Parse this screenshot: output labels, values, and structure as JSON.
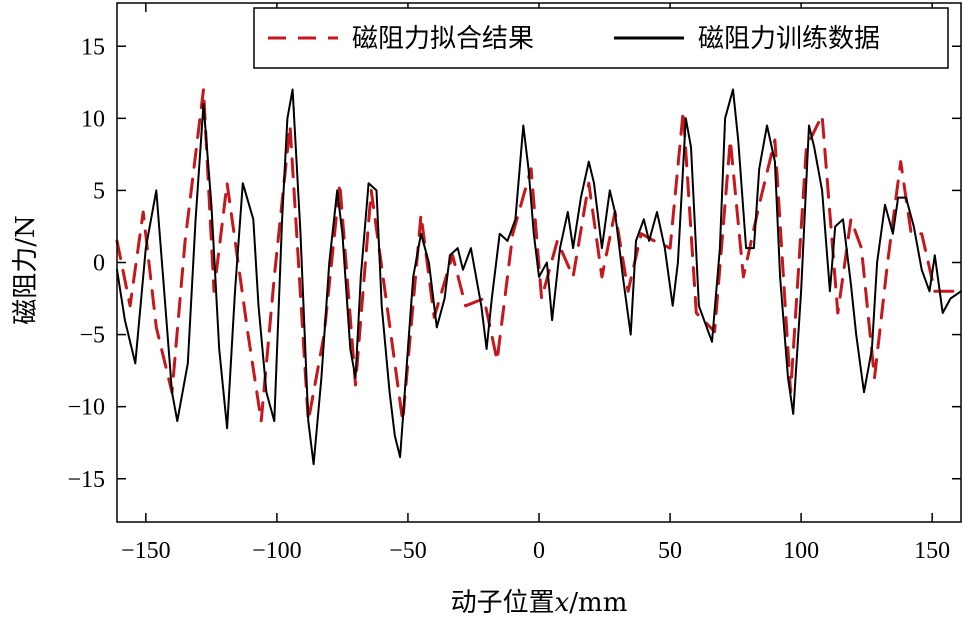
{
  "chart_data": {
    "type": "line",
    "title": "",
    "xlabel": "动子位置x/mm",
    "xlabel_parts": [
      "动子位置",
      "x",
      "/mm"
    ],
    "ylabel": "磁阻力/N",
    "xlim": [
      -161,
      161
    ],
    "ylim": [
      -18,
      18
    ],
    "xticks": [
      -150,
      -100,
      -50,
      0,
      50,
      100,
      150
    ],
    "xtick_labels": [
      "−150",
      "−100",
      "−50",
      "0",
      "50",
      "100",
      "150"
    ],
    "yticks": [
      -15,
      -10,
      -5,
      0,
      5,
      10,
      15
    ],
    "ytick_labels": [
      "−15",
      "−10",
      "−5",
      "0",
      "5",
      "10",
      "15"
    ],
    "grid": false,
    "legend_position": "top-right",
    "series": [
      {
        "name": "磁阻力拟合结果",
        "color": "#c8161d",
        "style": "dashed",
        "x": [
          -161,
          -156,
          -151,
          -146,
          -140,
          -135,
          -128,
          -124,
          -119,
          -111,
          -106,
          -101,
          -95,
          -88,
          -82,
          -76,
          -70,
          -64,
          -58,
          -52,
          -45,
          -40,
          -33,
          -28,
          -21,
          -16,
          -10,
          -3,
          1,
          7,
          13,
          19,
          24,
          29,
          34,
          39,
          44,
          50,
          55,
          60,
          67,
          73,
          78,
          84,
          90,
          96,
          102,
          108,
          114,
          119,
          123,
          128,
          133,
          138,
          142,
          146,
          151,
          156,
          161
        ],
        "y": [
          1.5,
          -3,
          3.5,
          -4.5,
          -9,
          1.5,
          12,
          -2,
          5.5,
          -5,
          -11,
          -1,
          9.5,
          -11,
          -5,
          5.5,
          -8.5,
          5,
          -3,
          -11,
          3.3,
          -3.8,
          0.5,
          -3,
          -2.5,
          -6.8,
          2,
          6.5,
          -2.5,
          1.5,
          -1,
          5.5,
          -1,
          3.5,
          -2,
          2,
          1.5,
          1,
          10.5,
          -3.5,
          -4.8,
          8.5,
          -1,
          4,
          8.5,
          -9,
          8,
          10.2,
          -3.5,
          3,
          1,
          -8,
          0,
          7,
          2,
          2,
          -2,
          -2,
          -2
        ]
      },
      {
        "name": "磁阻力训练数据",
        "color": "#000000",
        "style": "solid",
        "x": [
          -161,
          -158,
          -154,
          -150,
          -146,
          -143,
          -140,
          -138,
          -134,
          -131,
          -128,
          -125,
          -122,
          -119,
          -116,
          -113,
          -109,
          -107,
          -104,
          -101,
          -98,
          -96,
          -94,
          -91,
          -88,
          -86,
          -83,
          -80,
          -77,
          -75,
          -72,
          -70,
          -68,
          -65,
          -62,
          -60,
          -57,
          -55,
          -53,
          -50,
          -48,
          -45,
          -42,
          -39,
          -36,
          -34,
          -31,
          -29,
          -26,
          -24,
          -22,
          -20,
          -18,
          -15,
          -12,
          -9,
          -6,
          -4,
          -2,
          0,
          3,
          5,
          8,
          11,
          13,
          16,
          19,
          21,
          24,
          27,
          29,
          32,
          35,
          37,
          40,
          42,
          45,
          48,
          51,
          53,
          56,
          58,
          61,
          63,
          66,
          69,
          71,
          74,
          76,
          79,
          82,
          84,
          87,
          90,
          92,
          95,
          97,
          100,
          103,
          105,
          108,
          111,
          113,
          116,
          119,
          121,
          124,
          127,
          129,
          132,
          135,
          137,
          140,
          143,
          146,
          149,
          151,
          154,
          157,
          161
        ],
        "y": [
          -0.5,
          -4,
          -7,
          1,
          5,
          -2,
          -9,
          -11,
          -7,
          3,
          11,
          4,
          -6,
          -11.5,
          -2,
          5.5,
          3,
          -3,
          -9,
          -11,
          3,
          10,
          12,
          2,
          -11,
          -14,
          -8,
          0,
          5,
          2,
          -6,
          -8,
          -1,
          5.5,
          5,
          -3,
          -9,
          -12,
          -13.5,
          -6,
          -1,
          2,
          0,
          -4.5,
          -2.5,
          0.5,
          1,
          -0.5,
          1,
          -1,
          -3,
          -6,
          -2.5,
          2,
          1.5,
          3,
          9.5,
          6.5,
          2,
          -1,
          0,
          -4,
          1,
          3.5,
          1,
          4.5,
          7,
          5.5,
          1,
          5,
          3.5,
          -1,
          -5,
          1.5,
          3,
          1.5,
          3.5,
          1,
          -3,
          0,
          10,
          8,
          -3,
          -4,
          -5.5,
          1,
          10,
          12,
          8.5,
          1,
          1,
          6.5,
          9.5,
          7,
          -1,
          -8,
          -10.5,
          -2,
          9.5,
          8,
          5,
          -2,
          2.5,
          3,
          -1.5,
          -5,
          -9,
          -6,
          0,
          4,
          2,
          4.5,
          4.5,
          2.5,
          -0.5,
          -2,
          0.5,
          -3.5,
          -2.5,
          -2
        ]
      }
    ]
  }
}
